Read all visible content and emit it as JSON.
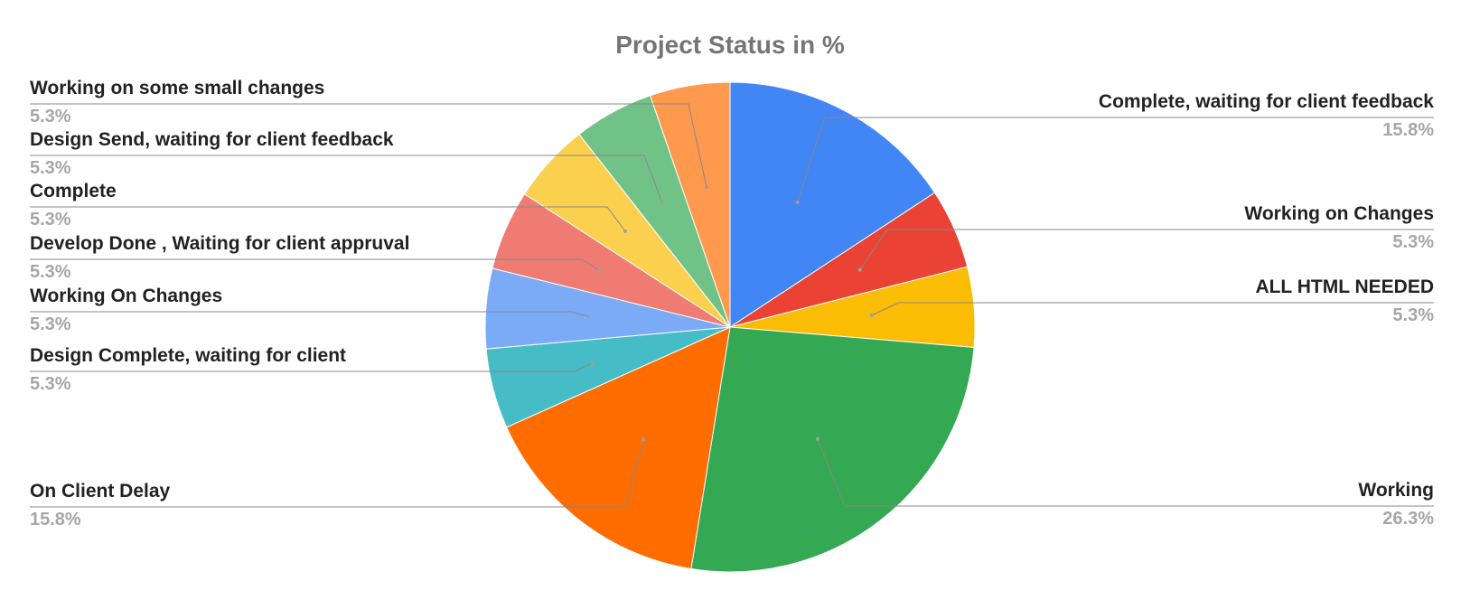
{
  "chart_data": {
    "type": "pie",
    "title": "Project Status in %",
    "start_angle_deg": 0,
    "direction": "clockwise",
    "slices": [
      {
        "label": "Complete, waiting for client feedback",
        "value": 15.8,
        "pct_label": "15.8%",
        "color": "#4285F4",
        "side": "right"
      },
      {
        "label": "Working on Changes",
        "value": 5.3,
        "pct_label": "5.3%",
        "color": "#EA4335",
        "side": "right"
      },
      {
        "label": "ALL HTML NEEDED",
        "value": 5.3,
        "pct_label": "5.3%",
        "color": "#FBBC04",
        "side": "right"
      },
      {
        "label": "Working",
        "value": 26.3,
        "pct_label": "26.3%",
        "color": "#34A853",
        "side": "right"
      },
      {
        "label": "On Client Delay",
        "value": 15.8,
        "pct_label": "15.8%",
        "color": "#FF6D01",
        "side": "left"
      },
      {
        "label": "Design Complete, waiting for client",
        "value": 5.3,
        "pct_label": "5.3%",
        "color": "#46BDC6",
        "side": "left"
      },
      {
        "label": "Working On Changes",
        "value": 5.3,
        "pct_label": "5.3%",
        "color": "#7BAAF7",
        "side": "left"
      },
      {
        "label": "Develop Done , Waiting for client appruval",
        "value": 5.3,
        "pct_label": "5.3%",
        "color": "#F07B72",
        "side": "left"
      },
      {
        "label": "Complete",
        "value": 5.3,
        "pct_label": "5.3%",
        "color": "#FCD04F",
        "side": "left"
      },
      {
        "label": "Design Send, waiting for client feedback",
        "value": 5.3,
        "pct_label": "5.3%",
        "color": "#71C287",
        "side": "left"
      },
      {
        "label": "Working on some small changes",
        "value": 5.3,
        "pct_label": "5.3%",
        "color": "#FF994D",
        "side": "left"
      }
    ],
    "legend": "none",
    "label_style": "leader-lines"
  }
}
